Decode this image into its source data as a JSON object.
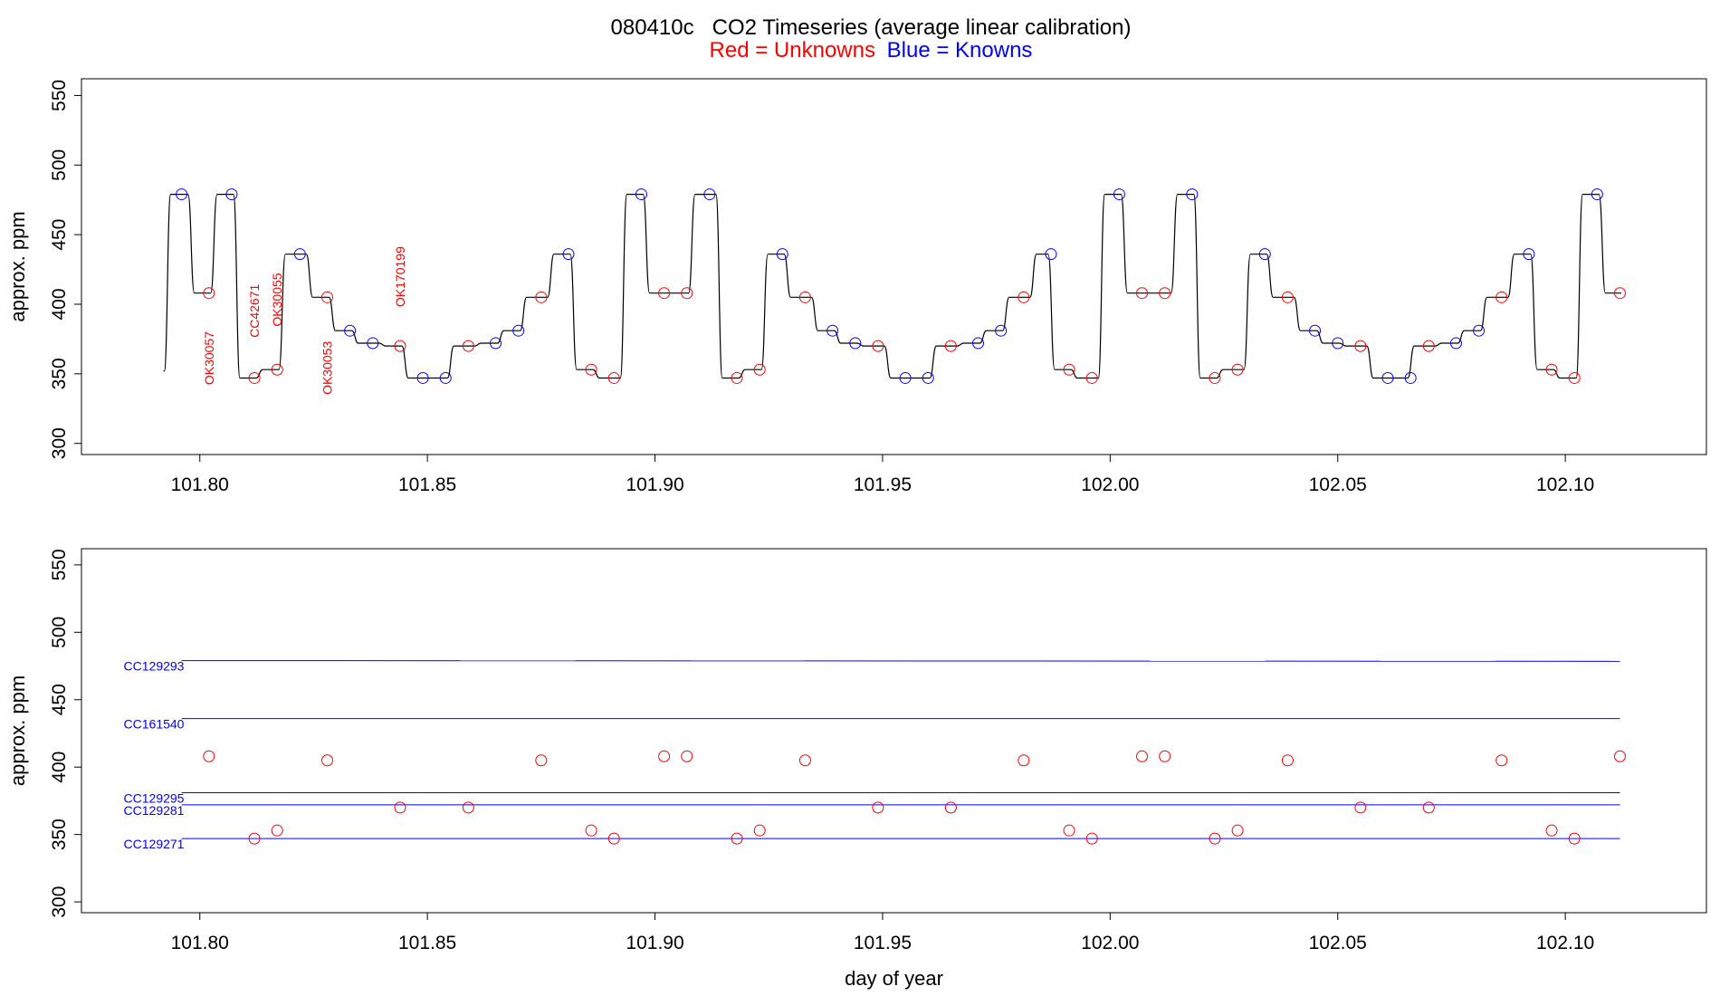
{
  "title": "080410c   CO2 Timeseries (average linear calibration)",
  "subtitle": {
    "red_part": "Red = Unknowns",
    "blue_part": "Blue = Knowns"
  },
  "colors": {
    "unknown": "#ff0000",
    "known": "#0000ff",
    "trace": "#000000"
  },
  "chart_data": [
    {
      "type": "line",
      "title": "080410c   CO2 Timeseries (average linear calibration)",
      "xlabel": "",
      "ylabel": "approx. ppm",
      "xlim": [
        101.774,
        102.131
      ],
      "ylim": [
        292,
        562
      ],
      "xticks": [
        101.8,
        101.85,
        101.9,
        101.95,
        102.0,
        102.05,
        102.1
      ],
      "xtick_labels": [
        "101.80",
        "101.85",
        "101.90",
        "101.95",
        "102.00",
        "102.05",
        "102.10"
      ],
      "yticks": [
        300,
        350,
        400,
        450,
        500,
        550
      ],
      "ytick_labels": [
        "300",
        "350",
        "400",
        "450",
        "500",
        "550"
      ],
      "grid": false,
      "trace_start": [
        101.792,
        352
      ],
      "known_points": [
        [
          101.796,
          479
        ],
        [
          101.807,
          479
        ],
        [
          101.822,
          436
        ],
        [
          101.833,
          381
        ],
        [
          101.838,
          372
        ],
        [
          101.849,
          347
        ],
        [
          101.854,
          347
        ],
        [
          101.865,
          372
        ],
        [
          101.87,
          381
        ],
        [
          101.881,
          436
        ],
        [
          101.897,
          479
        ],
        [
          101.912,
          479
        ],
        [
          101.928,
          436
        ],
        [
          101.939,
          381
        ],
        [
          101.944,
          372
        ],
        [
          101.955,
          347
        ],
        [
          101.96,
          347
        ],
        [
          101.971,
          372
        ],
        [
          101.976,
          381
        ],
        [
          101.987,
          436
        ],
        [
          102.002,
          479
        ],
        [
          102.018,
          479
        ],
        [
          102.034,
          436
        ],
        [
          102.045,
          381
        ],
        [
          102.05,
          372
        ],
        [
          102.061,
          347
        ],
        [
          102.066,
          347
        ],
        [
          102.076,
          372
        ],
        [
          102.081,
          381
        ],
        [
          102.092,
          436
        ],
        [
          102.107,
          479
        ]
      ],
      "unknown_points": [
        [
          101.802,
          408
        ],
        [
          101.812,
          347
        ],
        [
          101.817,
          353
        ],
        [
          101.828,
          405
        ],
        [
          101.844,
          370
        ],
        [
          101.859,
          370
        ],
        [
          101.875,
          405
        ],
        [
          101.886,
          353
        ],
        [
          101.891,
          347
        ],
        [
          101.902,
          408
        ],
        [
          101.907,
          408
        ],
        [
          101.918,
          347
        ],
        [
          101.923,
          353
        ],
        [
          101.933,
          405
        ],
        [
          101.949,
          370
        ],
        [
          101.965,
          370
        ],
        [
          101.981,
          405
        ],
        [
          101.991,
          353
        ],
        [
          101.996,
          347
        ],
        [
          102.007,
          408
        ],
        [
          102.012,
          408
        ],
        [
          102.023,
          347
        ],
        [
          102.028,
          353
        ],
        [
          102.039,
          405
        ],
        [
          102.055,
          370
        ],
        [
          102.07,
          370
        ],
        [
          102.086,
          405
        ],
        [
          102.097,
          353
        ],
        [
          102.102,
          347
        ],
        [
          102.112,
          408
        ]
      ],
      "annotations": [
        {
          "text": "OK30057",
          "x": 101.802,
          "y": 342
        },
        {
          "text": "CC42671",
          "x": 101.812,
          "y": 376
        },
        {
          "text": "OK30055",
          "x": 101.817,
          "y": 384
        },
        {
          "text": "OK30053",
          "x": 101.828,
          "y": 335
        },
        {
          "text": "OK170199",
          "x": 101.844,
          "y": 398
        }
      ]
    },
    {
      "type": "scatter",
      "xlabel": "day of year",
      "ylabel": "approx. ppm",
      "xlim": [
        101.774,
        102.131
      ],
      "ylim": [
        292,
        562
      ],
      "xticks": [
        101.8,
        101.85,
        101.9,
        101.95,
        102.0,
        102.05,
        102.1
      ],
      "xtick_labels": [
        "101.80",
        "101.85",
        "101.90",
        "101.95",
        "102.00",
        "102.05",
        "102.10"
      ],
      "yticks": [
        300,
        350,
        400,
        450,
        500,
        550
      ],
      "ytick_labels": [
        "300",
        "350",
        "400",
        "450",
        "500",
        "550"
      ],
      "grid": false,
      "reference_lines": [
        {
          "name": "CC129293",
          "x0": 101.796,
          "y0": 479,
          "x1": 102.112,
          "y1": 478.5
        },
        {
          "name": "CC161540",
          "x0": 101.796,
          "y0": 436,
          "x1": 102.112,
          "y1": 436
        },
        {
          "name": "CC129295",
          "x0": 101.796,
          "y0": 381,
          "x1": 102.112,
          "y1": 381
        },
        {
          "name": "CC129281",
          "x0": 101.796,
          "y0": 372,
          "x1": 102.112,
          "y1": 372
        },
        {
          "name": "CC129271",
          "x0": 101.796,
          "y0": 347,
          "x1": 102.112,
          "y1": 347
        }
      ],
      "unknown_points": [
        [
          101.802,
          408
        ],
        [
          101.812,
          347
        ],
        [
          101.817,
          353
        ],
        [
          101.828,
          405
        ],
        [
          101.844,
          370
        ],
        [
          101.859,
          370
        ],
        [
          101.875,
          405
        ],
        [
          101.886,
          353
        ],
        [
          101.891,
          347
        ],
        [
          101.902,
          408
        ],
        [
          101.907,
          408
        ],
        [
          101.918,
          347
        ],
        [
          101.923,
          353
        ],
        [
          101.933,
          405
        ],
        [
          101.949,
          370
        ],
        [
          101.965,
          370
        ],
        [
          101.981,
          405
        ],
        [
          101.991,
          353
        ],
        [
          101.996,
          347
        ],
        [
          102.007,
          408
        ],
        [
          102.012,
          408
        ],
        [
          102.023,
          347
        ],
        [
          102.028,
          353
        ],
        [
          102.039,
          405
        ],
        [
          102.055,
          370
        ],
        [
          102.07,
          370
        ],
        [
          102.086,
          405
        ],
        [
          102.097,
          353
        ],
        [
          102.102,
          347
        ],
        [
          102.112,
          408
        ]
      ]
    }
  ]
}
